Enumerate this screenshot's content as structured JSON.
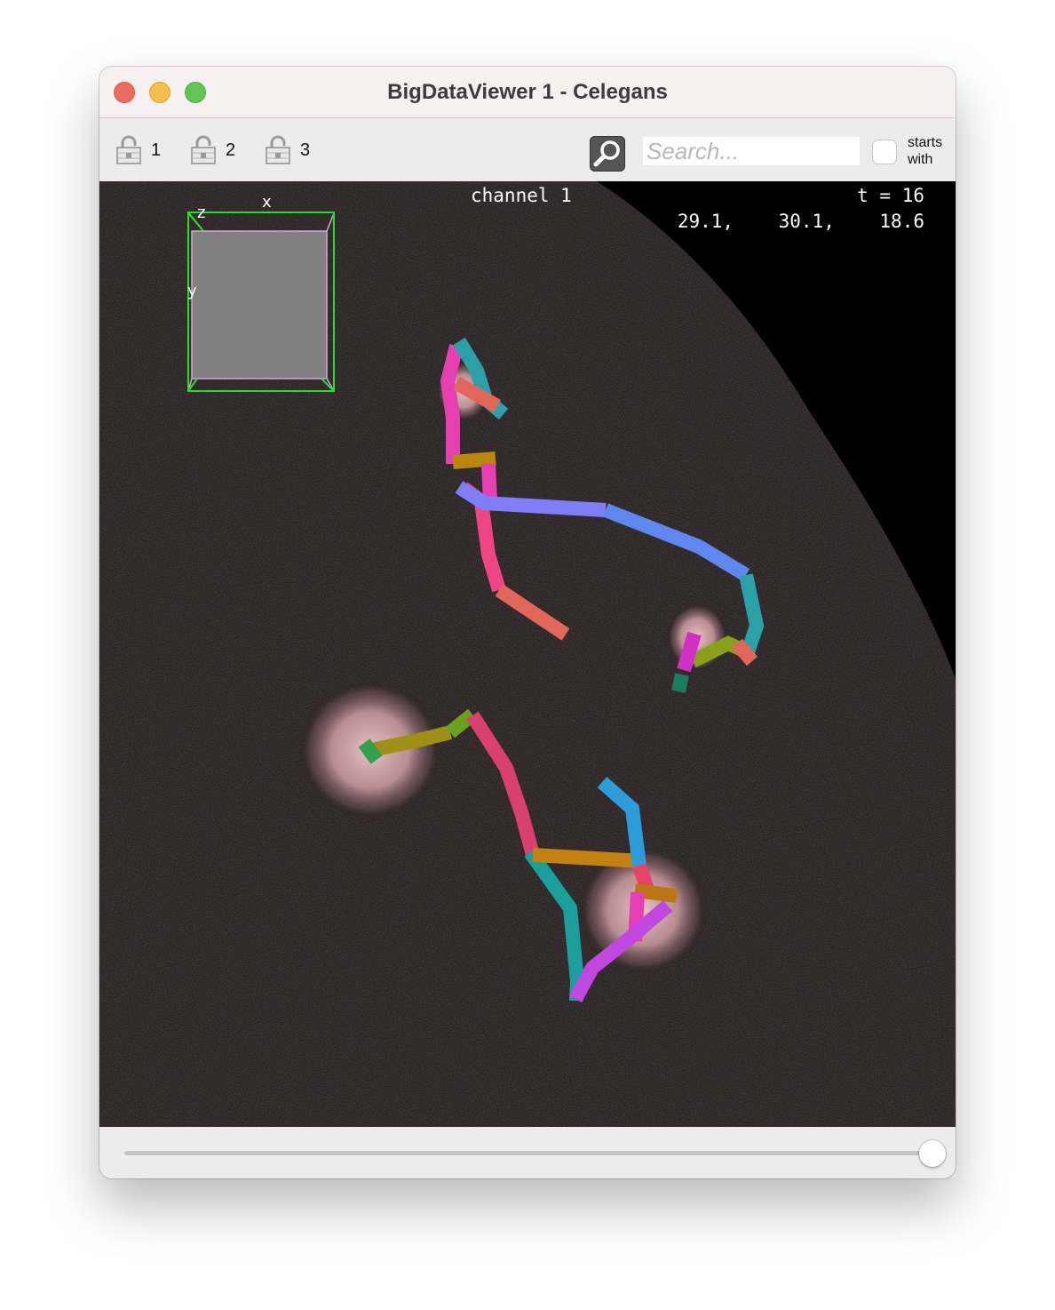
{
  "window": {
    "title": "BigDataViewer 1 - Celegans"
  },
  "toolbar": {
    "locks": [
      {
        "label": "1",
        "icon": "lock-icon"
      },
      {
        "label": "2",
        "icon": "lock-icon"
      },
      {
        "label": "3",
        "icon": "lock-icon"
      }
    ],
    "search_icon": "magnifier-icon",
    "search_placeholder": "Search...",
    "search_value": "",
    "starts_with_label_line1": "starts",
    "starts_with_label_line2": "with",
    "starts_with_checked": false
  },
  "viewer": {
    "channel": "channel 1",
    "time_label": "t = 16",
    "coordinates": "29.1,    30.1,    18.6",
    "box_axes": {
      "x": "x",
      "y": "y",
      "z": "z"
    }
  },
  "timepoint_slider": {
    "value_fraction": 1.0
  },
  "colors": {
    "track_colors": [
      "#e63fb2",
      "#2aa1a7",
      "#e2675a",
      "#7f7ef8",
      "#b8860b",
      "#6aa01d",
      "#d94070",
      "#c048e0",
      "#2c9dd8",
      "#33a04e"
    ],
    "bounding_box": "#22e02a"
  }
}
